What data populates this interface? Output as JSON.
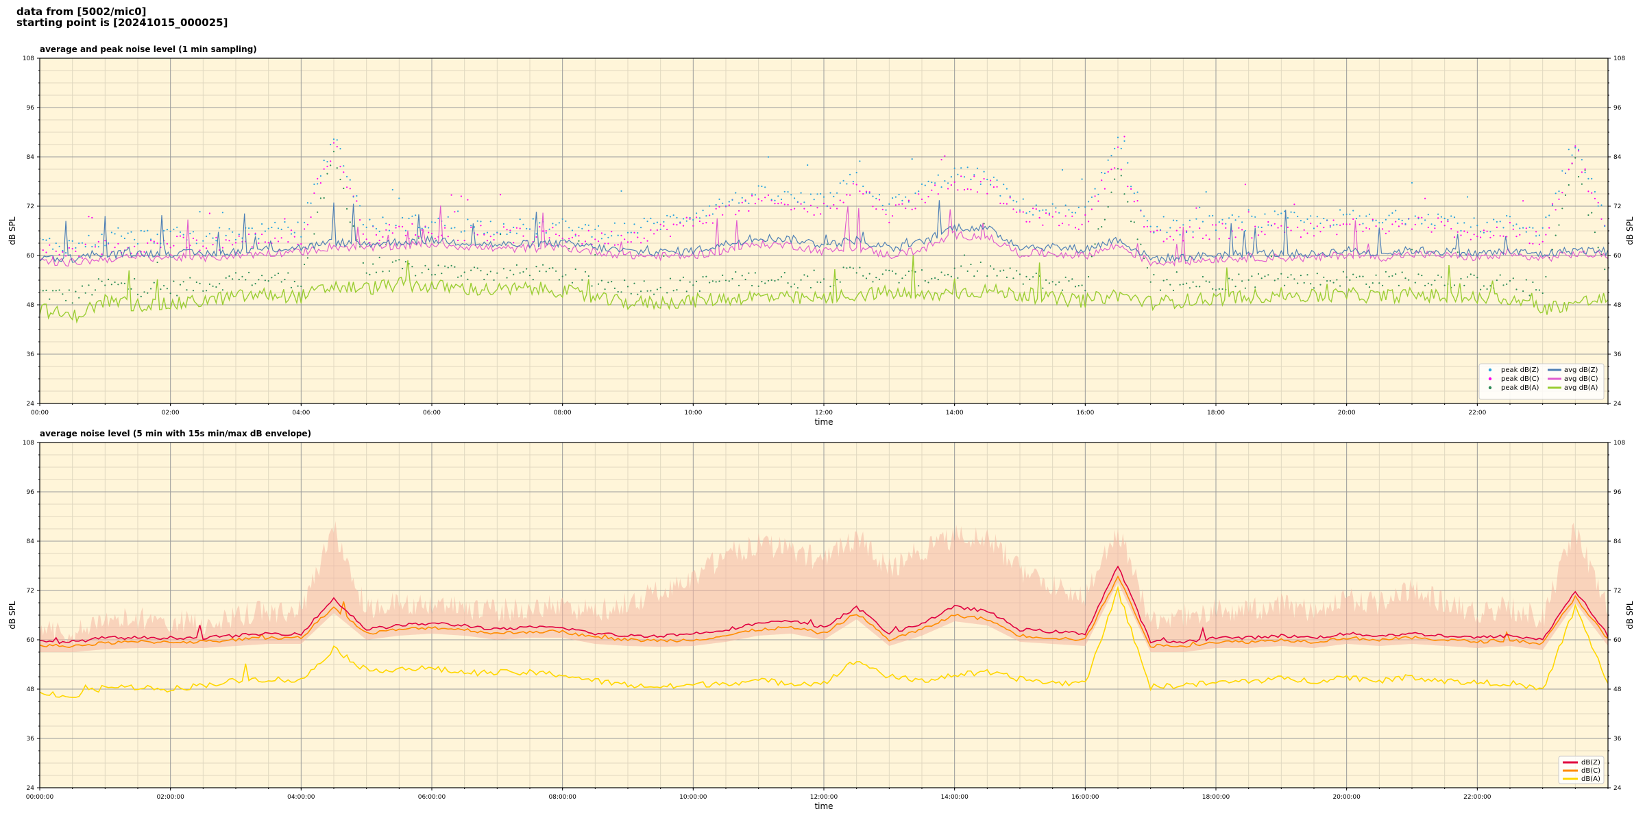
{
  "header": {
    "line1": "data from [5002/mic0]",
    "line2": "starting point is [20241015_000025]"
  },
  "theme": {
    "plot_bg": "#fff5d9",
    "grid_major": "#9a9a9a",
    "grid_minor": "#e0d8c0",
    "avg_z": "#4e7fb5",
    "avg_c": "#e05dcf",
    "avg_a": "#9acd32",
    "peak_z": "#2aa3dd",
    "peak_c": "#ff00ee",
    "peak_a": "#2e8b57",
    "env_z": "#e00040",
    "env_c": "#ff8c00",
    "env_a": "#ffd700",
    "envelope_fill": "#f4b7a3"
  },
  "chart_data": [
    {
      "type": "line",
      "title": "average and peak noise level (1 min sampling)",
      "xlabel": "time",
      "ylabel": "dB SPL",
      "ylabel_right": "dB SPL",
      "ylim": [
        24,
        108
      ],
      "xlim_hours": [
        0,
        24
      ],
      "yticks": [
        "24",
        "36",
        "48",
        "60",
        "72",
        "84",
        "96",
        "108"
      ],
      "xticks": [
        "00:00",
        "02:00",
        "04:00",
        "06:00",
        "08:00",
        "10:00",
        "12:00",
        "14:00",
        "16:00",
        "18:00",
        "20:00",
        "22:00"
      ],
      "grid": true,
      "legend_position": "bottom-right",
      "legend": [
        {
          "label": "peak dB(Z)",
          "kind": "dot",
          "color": "#2aa3dd"
        },
        {
          "label": "peak dB(C)",
          "kind": "dot",
          "color": "#ff00ee"
        },
        {
          "label": "peak dB(A)",
          "kind": "dot",
          "color": "#2e8b57"
        },
        {
          "label": "avg dB(Z)",
          "kind": "line",
          "color": "#4e7fb5"
        },
        {
          "label": "avg dB(C)",
          "kind": "line",
          "color": "#e05dcf"
        },
        {
          "label": "avg dB(A)",
          "kind": "line",
          "color": "#9acd32"
        }
      ],
      "x_hours": [
        0,
        0.5,
        1,
        1.5,
        2,
        2.5,
        3,
        3.5,
        4,
        4.5,
        5,
        5.5,
        6,
        6.5,
        7,
        7.5,
        8,
        8.5,
        9,
        9.5,
        10,
        10.5,
        11,
        11.5,
        12,
        12.5,
        13,
        13.5,
        14,
        14.5,
        15,
        15.5,
        16,
        16.5,
        17,
        17.5,
        18,
        18.5,
        19,
        19.5,
        20,
        20.5,
        21,
        21.5,
        22,
        22.5,
        23,
        23.5,
        24
      ],
      "series": [
        {
          "name": "avg dB(Z)",
          "values": [
            59.5,
            59.3,
            60.2,
            60.5,
            60.6,
            60.4,
            61,
            61.6,
            61.9,
            63.2,
            62.8,
            63.3,
            63.8,
            63.2,
            62.6,
            62.8,
            63.0,
            62.0,
            61.0,
            60.8,
            61.2,
            62.8,
            64.4,
            64.0,
            62.6,
            63.8,
            61.5,
            63.2,
            67.0,
            66.5,
            62.2,
            62.0,
            61.5,
            64.0,
            59.3,
            59.5,
            60.2,
            60.5,
            60.5,
            60.3,
            61.3,
            60.5,
            61.3,
            61.0,
            60.5,
            61.0,
            60.3,
            61.4,
            61.0
          ]
        },
        {
          "name": "avg dB(C)",
          "values": [
            58.5,
            58.3,
            59.2,
            59.5,
            59.6,
            59.4,
            60.0,
            60.6,
            60.9,
            62.2,
            61.8,
            62.3,
            62.8,
            62.2,
            61.6,
            61.8,
            62.0,
            61.0,
            60.0,
            59.8,
            60.0,
            61.3,
            62.8,
            62.5,
            61.0,
            62.0,
            60.0,
            61.5,
            65.0,
            64.5,
            60.5,
            60.5,
            60.0,
            62.5,
            58.3,
            58.5,
            59.2,
            59.5,
            59.5,
            59.3,
            60.3,
            59.5,
            60.3,
            60.0,
            59.5,
            60.0,
            59.3,
            60.4,
            60.0
          ]
        },
        {
          "name": "avg dB(A)",
          "values": [
            47.0,
            45.0,
            49.0,
            48.0,
            48.0,
            49.0,
            50.0,
            50.5,
            50.0,
            52.5,
            52.0,
            53.0,
            52.5,
            52.0,
            51.5,
            52.0,
            51.5,
            49.5,
            48.5,
            48.5,
            49.0,
            49.5,
            50.0,
            49.5,
            49.5,
            50.5,
            51.0,
            50.0,
            51.0,
            51.5,
            50.5,
            49.5,
            49.0,
            50.5,
            48.5,
            49.0,
            49.5,
            50.0,
            50.5,
            50.0,
            50.5,
            50.0,
            50.5,
            50.0,
            49.5,
            49.5,
            47.0,
            48.5,
            49.5
          ]
        },
        {
          "name": "peak dB(Z)",
          "kind": "scatter",
          "values": [
            63.0,
            62.5,
            64.0,
            64.5,
            65.0,
            64.5,
            65.5,
            66.0,
            66.5,
            89.0,
            67.0,
            68.0,
            68.0,
            67.5,
            67.0,
            67.0,
            67.0,
            66.0,
            66.5,
            68.0,
            70.0,
            73.0,
            75.0,
            74.0,
            73.0,
            79.0,
            72.0,
            76.0,
            80.0,
            79.0,
            72.0,
            71.0,
            70.0,
            87.0,
            66.0,
            67.0,
            68.0,
            68.0,
            69.0,
            68.0,
            69.5,
            68.0,
            70.0,
            69.0,
            67.0,
            68.0,
            66.0,
            88.0,
            67.0
          ]
        },
        {
          "name": "peak dB(C)",
          "values": [
            61.0,
            60.5,
            62.0,
            62.5,
            63.0,
            62.5,
            63.5,
            64.0,
            64.5,
            87.0,
            65.0,
            66.0,
            66.0,
            65.5,
            65.0,
            65.0,
            65.0,
            64.0,
            64.5,
            66.0,
            68.0,
            71.0,
            73.0,
            72.0,
            71.0,
            77.0,
            70.0,
            74.0,
            78.0,
            77.0,
            70.0,
            69.0,
            68.0,
            85.0,
            64.0,
            65.0,
            66.0,
            66.0,
            67.0,
            66.0,
            67.5,
            66.0,
            68.0,
            67.0,
            65.0,
            66.0,
            64.0,
            86.0,
            65.0
          ]
        },
        {
          "name": "peak dB(A)",
          "values": [
            51.0,
            50.0,
            53.0,
            52.0,
            52.0,
            53.0,
            54.0,
            54.5,
            54.0,
            84.0,
            56.0,
            57.0,
            56.5,
            56.0,
            55.5,
            56.0,
            55.5,
            53.5,
            52.5,
            52.5,
            53.0,
            54.0,
            54.5,
            54.0,
            54.0,
            56.0,
            55.0,
            54.5,
            56.0,
            56.5,
            54.5,
            53.5,
            53.0,
            82.0,
            52.5,
            53.0,
            53.5,
            54.0,
            54.5,
            54.0,
            54.5,
            54.0,
            55.0,
            54.0,
            53.5,
            53.5,
            51.0,
            84.0,
            53.5
          ]
        }
      ]
    },
    {
      "type": "line",
      "title": "average noise level (5 min with 15s min/max dB envelope)",
      "xlabel": "time",
      "ylabel": "dB SPL",
      "ylabel_right": "dB SPL",
      "ylim": [
        24,
        108
      ],
      "xlim_hours": [
        0,
        24
      ],
      "yticks": [
        "24",
        "36",
        "48",
        "60",
        "72",
        "84",
        "96",
        "108"
      ],
      "xticks": [
        "00:00:00",
        "02:00:00",
        "04:00:00",
        "06:00:00",
        "08:00:00",
        "10:00:00",
        "12:00:00",
        "14:00:00",
        "16:00:00",
        "18:00:00",
        "20:00:00",
        "22:00:00"
      ],
      "grid": true,
      "legend_position": "bottom-right",
      "legend": [
        {
          "label": "dB(Z)",
          "kind": "line",
          "color": "#e00040"
        },
        {
          "label": "dB(C)",
          "kind": "line",
          "color": "#ff8c00"
        },
        {
          "label": "dB(A)",
          "kind": "line",
          "color": "#ffd700"
        }
      ],
      "x_hours": [
        0,
        0.5,
        1,
        1.5,
        2,
        2.5,
        3,
        3.5,
        4,
        4.5,
        5,
        5.5,
        6,
        6.5,
        7,
        7.5,
        8,
        8.5,
        9,
        9.5,
        10,
        10.5,
        11,
        11.5,
        12,
        12.5,
        13,
        13.5,
        14,
        14.5,
        15,
        15.5,
        16,
        16.5,
        17,
        17.5,
        18,
        18.5,
        19,
        19.5,
        20,
        20.5,
        21,
        21.5,
        22,
        22.5,
        23,
        23.5,
        24
      ],
      "series": [
        {
          "name": "dB(Z)",
          "values": [
            59.5,
            59.5,
            60.5,
            60.5,
            60.5,
            60.5,
            61.0,
            61.5,
            61.5,
            70.0,
            62.5,
            63.5,
            64.0,
            63.5,
            62.5,
            63.0,
            63.0,
            61.5,
            61.0,
            61.0,
            61.5,
            62.5,
            64.0,
            64.5,
            63.0,
            68.0,
            61.5,
            64.0,
            68.0,
            67.0,
            62.5,
            62.0,
            61.5,
            78.0,
            59.5,
            59.5,
            60.5,
            60.5,
            61.0,
            60.5,
            61.5,
            61.0,
            61.5,
            61.0,
            60.5,
            61.0,
            60.0,
            72.0,
            61.0
          ]
        },
        {
          "name": "dB(C)",
          "values": [
            58.5,
            58.5,
            59.2,
            59.5,
            59.5,
            59.5,
            60.0,
            60.5,
            60.5,
            68.0,
            61.5,
            62.5,
            63.0,
            62.5,
            61.5,
            62.0,
            62.0,
            60.5,
            60.0,
            59.8,
            60.0,
            61.0,
            62.5,
            63.0,
            61.5,
            66.5,
            60.0,
            62.5,
            66.0,
            65.0,
            61.0,
            60.5,
            60.0,
            75.5,
            58.5,
            58.5,
            59.5,
            59.5,
            60.0,
            59.5,
            60.5,
            60.0,
            60.5,
            60.0,
            59.5,
            60.0,
            59.0,
            70.5,
            60.0
          ]
        },
        {
          "name": "dB(A)",
          "values": [
            47.5,
            46.0,
            48.5,
            48.5,
            48.0,
            49.0,
            50.0,
            50.5,
            50.0,
            58.0,
            52.5,
            53.0,
            53.0,
            52.0,
            52.0,
            52.0,
            51.5,
            50.0,
            49.0,
            48.5,
            49.0,
            49.5,
            50.0,
            49.5,
            49.5,
            55.0,
            51.0,
            50.0,
            51.5,
            52.0,
            50.5,
            49.5,
            49.5,
            72.0,
            48.5,
            49.0,
            49.5,
            50.0,
            50.5,
            50.0,
            51.0,
            50.0,
            51.0,
            50.0,
            49.5,
            49.5,
            47.5,
            68.0,
            49.5
          ]
        },
        {
          "name": "envelope max",
          "values": [
            66.0,
            64.0,
            68.0,
            68.0,
            68.0,
            67.0,
            69.0,
            70.0,
            70.0,
            90.0,
            70.0,
            72.0,
            72.0,
            71.0,
            70.0,
            71.0,
            71.0,
            70.0,
            72.0,
            75.0,
            78.0,
            84.0,
            86.0,
            85.0,
            82.0,
            88.0,
            80.0,
            85.0,
            88.0,
            88.0,
            80.0,
            76.0,
            74.0,
            90.0,
            68.0,
            69.0,
            70.0,
            70.0,
            72.0,
            70.0,
            73.0,
            72.0,
            75.0,
            72.0,
            70.0,
            71.0,
            68.0,
            90.0,
            70.0
          ]
        }
      ]
    }
  ]
}
